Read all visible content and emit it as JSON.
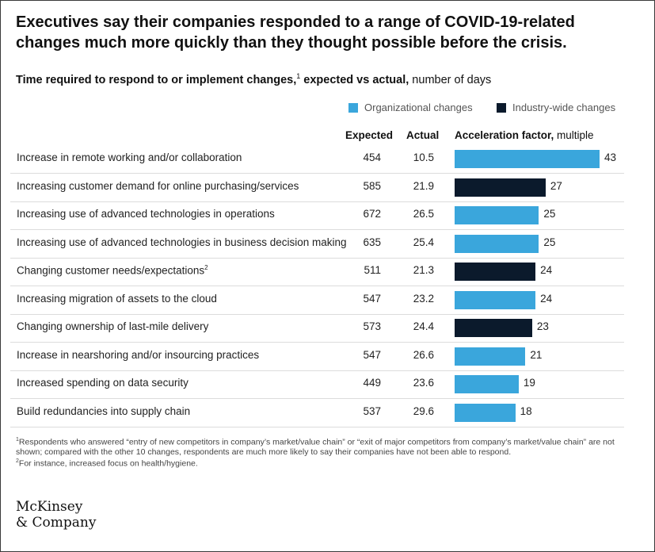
{
  "header": {
    "title": "Executives say their companies responded to a range of COVID-19-related changes much more quickly than they thought possible before the crisis.",
    "subtitle_bold": "Time required to respond to or implement changes,",
    "subtitle_sup": "1",
    "subtitle_bold2": " expected vs actual,",
    "subtitle_rest": " number of days"
  },
  "legend": {
    "organizational": "Organizational changes",
    "industry": "Industry-wide changes"
  },
  "columns": {
    "expected": "Expected",
    "actual": "Actual",
    "factor_bold": "Acceleration factor,",
    "factor_rest": " multiple"
  },
  "colors": {
    "organizational": "#3aa6dc",
    "industry": "#0b1a2c"
  },
  "chart_data": {
    "type": "bar",
    "orientation": "horizontal",
    "xlim": [
      0,
      43
    ],
    "categories": [
      "Increase in remote working and/or collaboration",
      "Increasing customer demand for online purchasing/services",
      "Increasing use of advanced technologies in operations",
      "Increasing use of advanced technologies in business decision making",
      "Changing customer needs/expectations",
      "Increasing migration of assets to the cloud",
      "Changing ownership of last-mile delivery",
      "Increase in nearshoring and/or insourcing practices",
      "Increased spending on data security",
      "Build redundancies into supply chain"
    ],
    "category_sups": [
      "",
      "",
      "",
      "",
      "2",
      "",
      "",
      "",
      "",
      ""
    ],
    "expected": [
      "454",
      "585",
      "672",
      "635",
      "511",
      "547",
      "573",
      "547",
      "449",
      "537"
    ],
    "actual": [
      "10.5",
      "21.9",
      "26.5",
      "25.4",
      "21.3",
      "23.2",
      "24.4",
      "26.6",
      "23.6",
      "29.6"
    ],
    "values": [
      43,
      27,
      25,
      25,
      24,
      24,
      23,
      21,
      19,
      18
    ],
    "group": [
      "organizational",
      "industry",
      "organizational",
      "organizational",
      "industry",
      "organizational",
      "industry",
      "organizational",
      "organizational",
      "organizational"
    ]
  },
  "footnotes": {
    "note1_sup": "1",
    "note1": "Respondents who answered “entry of new competitors in company’s market/value chain” or “exit of major competitors from company’s market/value chain” are not shown; compared with the other 10 changes, respondents are much more likely to say their companies have not been able to respond.",
    "note2_sup": "2",
    "note2": "For instance, increased focus on health/hygiene."
  },
  "logo": {
    "line1": "McKinsey",
    "line2": "& Company"
  }
}
